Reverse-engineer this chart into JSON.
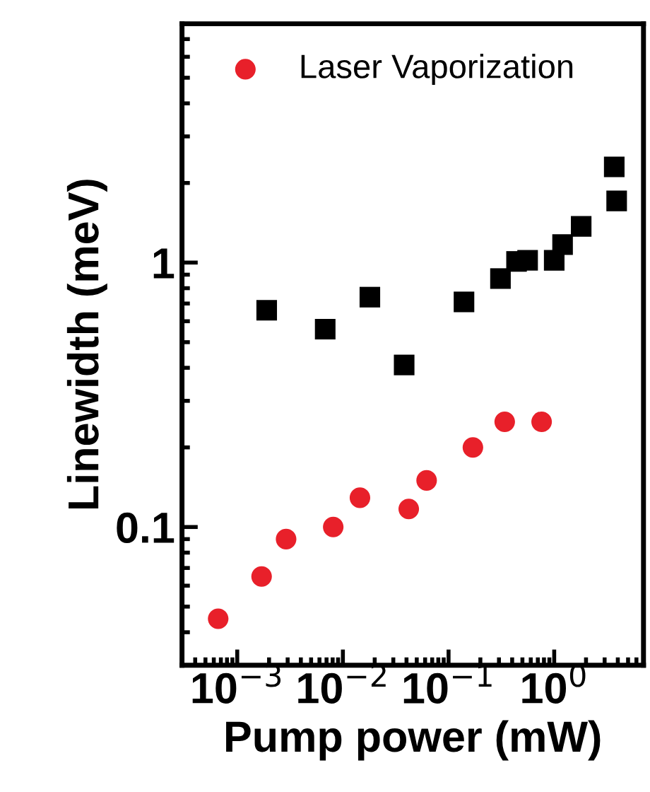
{
  "chart_data": {
    "type": "scatter",
    "xlabel": "Pump power (mW)",
    "ylabel": "Linewidth (meV)",
    "log": "xy",
    "grid": false,
    "legend": "top left",
    "xlim": [
      0.0003,
      7
    ],
    "ylim": [
      0.03,
      8
    ],
    "xticks": [
      {
        "value": 0.001,
        "label": "10$^{−3}$"
      },
      {
        "value": 0.01,
        "label": "10$^{−2}$"
      },
      {
        "value": 0.1,
        "label": "10$^{−1}$"
      },
      {
        "value": 1,
        "label": "10$^{0}$"
      }
    ],
    "yticks": [
      {
        "value": 0.1,
        "label": "0.1"
      },
      {
        "value": 1,
        "label": "1"
      }
    ],
    "series": [
      {
        "color": "#000000",
        "marker": "square",
        "x": [
          0.0019,
          0.0068,
          0.018,
          0.038,
          0.14,
          0.31,
          0.44,
          0.56,
          1.0,
          1.2,
          1.8,
          3.7,
          3.9
        ],
        "values": [
          0.66,
          0.56,
          0.74,
          0.41,
          0.71,
          0.87,
          1.01,
          1.02,
          1.02,
          1.17,
          1.37,
          2.3,
          1.71
        ]
      },
      {
        "name": "Laser Vaporization",
        "color": "#e8202a",
        "marker": "circle",
        "x": [
          0.00066,
          0.0017,
          0.0029,
          0.0081,
          0.0145,
          0.042,
          0.062,
          0.17,
          0.34,
          0.76
        ],
        "values": [
          0.045,
          0.065,
          0.09,
          0.1,
          0.129,
          0.117,
          0.15,
          0.2,
          0.25,
          0.25
        ]
      }
    ]
  }
}
